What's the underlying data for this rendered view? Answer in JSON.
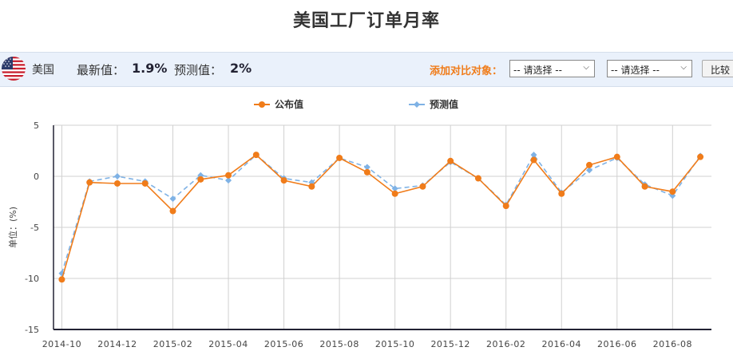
{
  "page": {
    "title": "美国工厂订单月率"
  },
  "info_bar": {
    "country": "美国",
    "latest_label": "最新值：",
    "latest_value": "1.9%",
    "forecast_label": "预测值：",
    "forecast_value": "2%",
    "compare_label": "添加对比对象：",
    "select_1": "-- 请选择 --",
    "select_2": "-- 请选择 --",
    "compare_button": "比较"
  },
  "colors": {
    "published": "#f07c1a",
    "forecast": "#7fb2e5",
    "accent": "#f07c1a"
  },
  "chart_data": {
    "type": "line",
    "ylabel": "单位：(%)",
    "ylim": [
      -15,
      5
    ],
    "yticks": [
      5,
      0,
      -5,
      -10,
      -15
    ],
    "x_range": [
      -0.3,
      23.4
    ],
    "xtick_labels": [
      {
        "i": 0,
        "label": "2014-10"
      },
      {
        "i": 2,
        "label": "2014-12"
      },
      {
        "i": 4,
        "label": "2015-02"
      },
      {
        "i": 6,
        "label": "2015-04"
      },
      {
        "i": 8,
        "label": "2015-06"
      },
      {
        "i": 10,
        "label": "2015-08"
      },
      {
        "i": 12,
        "label": "2015-10"
      },
      {
        "i": 14,
        "label": "2015-12"
      },
      {
        "i": 16,
        "label": "2016-02"
      },
      {
        "i": 18,
        "label": "2016-04"
      },
      {
        "i": 20,
        "label": "2016-06"
      },
      {
        "i": 22,
        "label": "2016-08"
      }
    ],
    "grid": true,
    "legend_position": "top-center",
    "series": [
      {
        "name": "公布值",
        "style": "solid",
        "marker": "circle",
        "values": [
          -10.1,
          -0.6,
          -0.7,
          -0.7,
          -3.4,
          -0.3,
          0.1,
          2.1,
          -0.4,
          -1.0,
          1.8,
          0.4,
          -1.7,
          -1.0,
          1.5,
          -0.2,
          -2.9,
          1.6,
          -1.7,
          1.1,
          1.9,
          -1.0,
          -1.5,
          1.9
        ]
      },
      {
        "name": "预测值",
        "style": "dashed",
        "marker": "diamond",
        "values": [
          -9.5,
          -0.5,
          0.0,
          -0.5,
          -2.2,
          0.1,
          -0.4,
          2.1,
          -0.2,
          -0.6,
          1.8,
          0.9,
          -1.2,
          -0.9,
          1.4,
          -0.2,
          -2.8,
          2.1,
          -1.6,
          0.6,
          1.8,
          -0.8,
          -1.9,
          2.0
        ]
      }
    ]
  }
}
